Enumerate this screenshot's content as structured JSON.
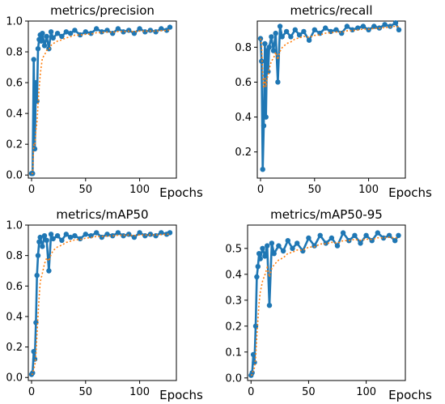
{
  "chart_data": [
    {
      "type": "line",
      "title": "metrics/precision",
      "xlabel": "Epochs",
      "xlim": [
        -3,
        134
      ],
      "ylim": [
        -0.02,
        1.0
      ],
      "xticks": [
        0,
        50,
        100
      ],
      "yticks": [
        0.0,
        0.2,
        0.4,
        0.6,
        0.8,
        1.0
      ],
      "series": [
        {
          "name": "",
          "x": [
            0,
            1,
            2,
            3,
            4,
            5,
            6,
            7,
            8,
            9,
            10,
            12,
            14,
            16,
            18,
            20,
            24,
            28,
            32,
            36,
            40,
            45,
            50,
            55,
            60,
            65,
            70,
            75,
            80,
            85,
            90,
            95,
            100,
            105,
            110,
            115,
            120,
            125,
            128
          ],
          "y": [
            0.01,
            0.01,
            0.75,
            0.17,
            0.6,
            0.48,
            0.82,
            0.88,
            0.91,
            0.87,
            0.92,
            0.84,
            0.9,
            0.82,
            0.93,
            0.89,
            0.92,
            0.9,
            0.93,
            0.92,
            0.94,
            0.91,
            0.93,
            0.92,
            0.95,
            0.93,
            0.94,
            0.92,
            0.95,
            0.93,
            0.94,
            0.92,
            0.95,
            0.93,
            0.94,
            0.93,
            0.95,
            0.94,
            0.96
          ]
        }
      ]
    },
    {
      "type": "line",
      "title": "metrics/recall",
      "xlabel": "Epochs",
      "xlim": [
        -3,
        134
      ],
      "ylim": [
        0.05,
        0.95
      ],
      "xticks": [
        0,
        50,
        100
      ],
      "yticks": [
        0.2,
        0.4,
        0.6,
        0.8
      ],
      "series": [
        {
          "name": "",
          "x": [
            0,
            1,
            2,
            3,
            4,
            5,
            6,
            7,
            8,
            10,
            12,
            14,
            16,
            18,
            20,
            24,
            28,
            32,
            36,
            40,
            45,
            50,
            55,
            60,
            65,
            70,
            75,
            80,
            85,
            90,
            95,
            100,
            105,
            110,
            115,
            120,
            125,
            128
          ],
          "y": [
            0.85,
            0.72,
            0.1,
            0.35,
            0.82,
            0.4,
            0.78,
            0.66,
            0.8,
            0.86,
            0.78,
            0.88,
            0.6,
            0.92,
            0.86,
            0.89,
            0.86,
            0.9,
            0.87,
            0.89,
            0.84,
            0.9,
            0.88,
            0.91,
            0.89,
            0.9,
            0.88,
            0.92,
            0.9,
            0.91,
            0.92,
            0.9,
            0.92,
            0.91,
            0.93,
            0.92,
            0.94,
            0.9
          ]
        }
      ]
    },
    {
      "type": "line",
      "title": "metrics/mAP50",
      "xlabel": "Epochs",
      "xlim": [
        -3,
        134
      ],
      "ylim": [
        -0.02,
        1.0
      ],
      "xticks": [
        0,
        50,
        100
      ],
      "yticks": [
        0.0,
        0.2,
        0.4,
        0.6,
        0.8,
        1.0
      ],
      "series": [
        {
          "name": "",
          "x": [
            0,
            1,
            2,
            3,
            4,
            5,
            6,
            7,
            8,
            10,
            12,
            14,
            16,
            18,
            20,
            24,
            28,
            32,
            36,
            40,
            45,
            50,
            55,
            60,
            65,
            70,
            75,
            80,
            85,
            90,
            95,
            100,
            105,
            110,
            115,
            120,
            125,
            128
          ],
          "y": [
            0.02,
            0.03,
            0.17,
            0.12,
            0.36,
            0.67,
            0.8,
            0.89,
            0.92,
            0.86,
            0.93,
            0.9,
            0.7,
            0.94,
            0.91,
            0.93,
            0.9,
            0.94,
            0.92,
            0.93,
            0.91,
            0.94,
            0.93,
            0.95,
            0.92,
            0.94,
            0.93,
            0.95,
            0.93,
            0.94,
            0.92,
            0.95,
            0.93,
            0.94,
            0.93,
            0.95,
            0.94,
            0.95
          ]
        }
      ]
    },
    {
      "type": "line",
      "title": "metrics/mAP50-95",
      "xlabel": "Epochs",
      "xlim": [
        -3,
        134
      ],
      "ylim": [
        -0.01,
        0.59
      ],
      "xticks": [
        0,
        50,
        100
      ],
      "yticks": [
        0.0,
        0.1,
        0.2,
        0.3,
        0.4,
        0.5
      ],
      "series": [
        {
          "name": "",
          "x": [
            0,
            1,
            2,
            3,
            4,
            5,
            6,
            7,
            8,
            10,
            12,
            14,
            16,
            18,
            20,
            24,
            28,
            32,
            36,
            40,
            45,
            50,
            55,
            60,
            65,
            70,
            75,
            80,
            85,
            90,
            95,
            100,
            105,
            110,
            115,
            120,
            125,
            128
          ],
          "y": [
            0.01,
            0.02,
            0.09,
            0.06,
            0.2,
            0.39,
            0.43,
            0.48,
            0.46,
            0.5,
            0.47,
            0.51,
            0.28,
            0.52,
            0.48,
            0.51,
            0.49,
            0.53,
            0.5,
            0.52,
            0.49,
            0.54,
            0.51,
            0.55,
            0.52,
            0.54,
            0.51,
            0.56,
            0.53,
            0.55,
            0.52,
            0.55,
            0.53,
            0.56,
            0.54,
            0.55,
            0.53,
            0.55
          ]
        }
      ]
    }
  ]
}
